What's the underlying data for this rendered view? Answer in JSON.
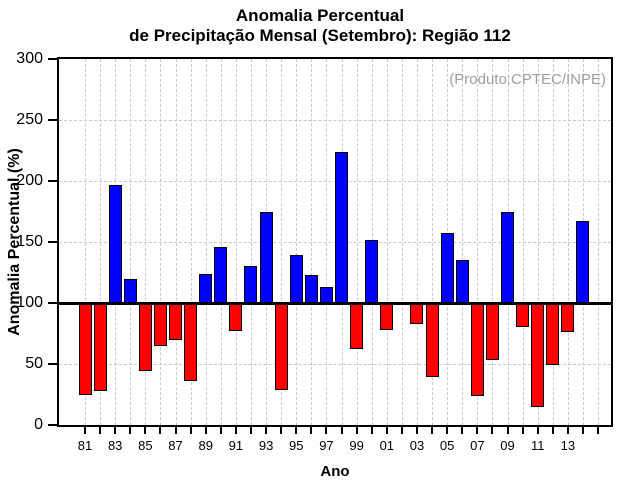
{
  "chart_data": {
    "type": "bar",
    "title": "Anomalia Percentual",
    "subtitle": "de Precipitação Mensal (Setembro): Região 112",
    "annotation": "(Produto:CPTEC/INPE)",
    "xlabel": "Ano",
    "ylabel": "Anomalia Percentual (%)",
    "ylim": [
      0,
      300
    ],
    "ytick_step": 50,
    "baseline": 100,
    "xtick_label_every": 2,
    "grid": true,
    "legend": "none",
    "categories": [
      "81",
      "82",
      "83",
      "84",
      "85",
      "86",
      "87",
      "88",
      "89",
      "90",
      "91",
      "92",
      "93",
      "94",
      "95",
      "96",
      "97",
      "98",
      "99",
      "00",
      "01",
      "02",
      "03",
      "04",
      "05",
      "06",
      "07",
      "08",
      "09",
      "10",
      "11",
      "12",
      "13",
      "14"
    ],
    "values": [
      25,
      28,
      197,
      120,
      44,
      65,
      70,
      36,
      124,
      146,
      77,
      130,
      175,
      29,
      139,
      123,
      113,
      224,
      62,
      152,
      78,
      101,
      83,
      39,
      157,
      135,
      24,
      53,
      175,
      80,
      15,
      49,
      76,
      167
    ],
    "colors": {
      "above_baseline": "#0000ff",
      "below_baseline": "#ff0000",
      "baseline_line": "#000000",
      "grid": "#c9c9c9",
      "annotation_text": "#9e9e9e"
    }
  }
}
